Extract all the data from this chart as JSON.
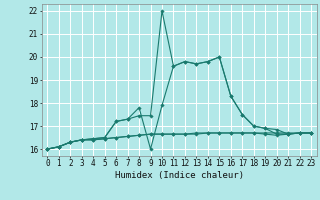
{
  "xlabel": "Humidex (Indice chaleur)",
  "bg_color": "#b2e8e8",
  "grid_color": "#ffffff",
  "line_color": "#1a7a6e",
  "marker_color": "#1a7a6e",
  "xlim": [
    -0.5,
    23.5
  ],
  "ylim": [
    15.7,
    22.3
  ],
  "xticks": [
    0,
    1,
    2,
    3,
    4,
    5,
    6,
    7,
    8,
    9,
    10,
    11,
    12,
    13,
    14,
    15,
    16,
    17,
    18,
    19,
    20,
    21,
    22,
    23
  ],
  "yticks": [
    16,
    17,
    18,
    19,
    20,
    21,
    22
  ],
  "series": [
    [
      16.0,
      16.1,
      16.3,
      16.4,
      16.4,
      16.45,
      16.5,
      16.55,
      16.6,
      16.65,
      16.65,
      16.65,
      16.65,
      16.7,
      16.7,
      16.7,
      16.7,
      16.7,
      16.7,
      16.65,
      16.6,
      16.65,
      16.7,
      16.7
    ],
    [
      16.0,
      16.1,
      16.3,
      16.4,
      16.4,
      16.45,
      16.5,
      16.55,
      16.6,
      16.65,
      16.65,
      16.65,
      16.65,
      16.65,
      16.7,
      16.7,
      16.7,
      16.7,
      16.7,
      16.7,
      16.7,
      16.7,
      16.7,
      16.7
    ],
    [
      16.0,
      16.1,
      16.3,
      16.4,
      16.45,
      16.5,
      17.2,
      17.3,
      17.8,
      16.0,
      17.9,
      19.6,
      19.8,
      19.7,
      19.8,
      20.0,
      18.3,
      17.5,
      17.0,
      16.9,
      16.65,
      16.65,
      16.7,
      16.7
    ],
    [
      16.0,
      16.1,
      16.3,
      16.4,
      16.45,
      16.5,
      17.2,
      17.3,
      17.45,
      17.45,
      22.0,
      19.6,
      19.8,
      19.7,
      19.8,
      20.0,
      18.3,
      17.5,
      17.0,
      16.9,
      16.85,
      16.65,
      16.7,
      16.7
    ]
  ]
}
